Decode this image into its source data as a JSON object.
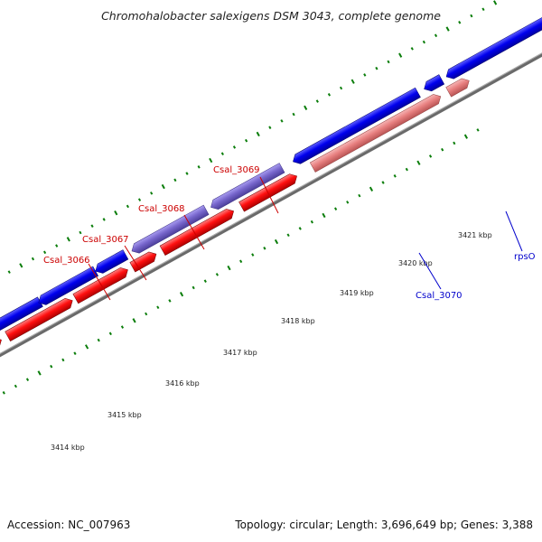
{
  "title": "Chromohalobacter salexigens DSM 3043, complete genome",
  "accession_text": "Accession: NC_007963",
  "summary_text": "Topology: circular; Length: 3,696,649 bp; Genes: 3,388",
  "ticks": [
    "3414 kbp",
    "3415 kbp",
    "3416 kbp",
    "3417 kbp",
    "3418 kbp",
    "3419 kbp",
    "3420 kbp",
    "3421 kbp"
  ],
  "gene_labels": [
    {
      "label": "Csal_3066",
      "strand": "minus"
    },
    {
      "label": "Csal_3067",
      "strand": "minus"
    },
    {
      "label": "Csal_3068",
      "strand": "minus"
    },
    {
      "label": "Csal_3069",
      "strand": "minus"
    },
    {
      "label": "Csal_3070",
      "strand": "plus"
    },
    {
      "label": "rpsO",
      "strand": "plus"
    }
  ],
  "colors": {
    "gene_blue": "#0000e6",
    "gene_red": "#ff1a1a",
    "gene_purple": "#7766cc",
    "gene_pink": "#e88080",
    "label_red": "#cc0000",
    "label_blue": "#0000cc",
    "tick_green": "#006400",
    "backbone": "#666666"
  }
}
